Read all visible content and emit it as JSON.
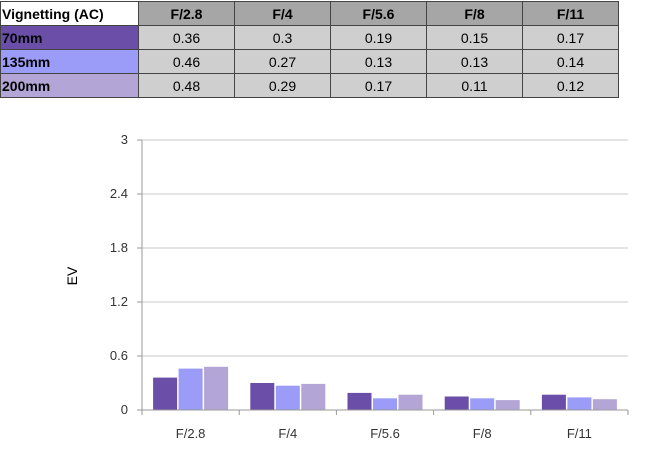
{
  "table": {
    "corner_label": "Vignetting (AC)",
    "columns": [
      "F/2.8",
      "F/4",
      "F/5.6",
      "F/8",
      "F/11"
    ],
    "rows": [
      {
        "label": "70mm",
        "color": "#6a4ea8",
        "values": [
          "0.36",
          "0.3",
          "0.19",
          "0.15",
          "0.17"
        ]
      },
      {
        "label": "135mm",
        "color": "#9b9cf7",
        "values": [
          "0.46",
          "0.27",
          "0.13",
          "0.13",
          "0.14"
        ]
      },
      {
        "label": "200mm",
        "color": "#b3a5d5",
        "values": [
          "0.48",
          "0.29",
          "0.17",
          "0.11",
          "0.12"
        ]
      }
    ]
  },
  "chart_data": {
    "type": "bar",
    "categories": [
      "F/2.8",
      "F/4",
      "F/5.6",
      "F/8",
      "F/11"
    ],
    "series": [
      {
        "name": "70mm",
        "color": "#6a4ea8",
        "values": [
          0.36,
          0.3,
          0.19,
          0.15,
          0.17
        ]
      },
      {
        "name": "135mm",
        "color": "#9b9cf7",
        "values": [
          0.46,
          0.27,
          0.13,
          0.13,
          0.14
        ]
      },
      {
        "name": "200mm",
        "color": "#b3a5d5",
        "values": [
          0.48,
          0.29,
          0.17,
          0.11,
          0.12
        ]
      }
    ],
    "title": "",
    "xlabel": "",
    "ylabel": "EV",
    "ylim": [
      0,
      3
    ],
    "yticks": [
      "0",
      "0.6",
      "1.2",
      "1.8",
      "2.4",
      "3"
    ],
    "ytick_values": [
      0,
      0.6,
      1.2,
      1.8,
      2.4,
      3
    ],
    "grid": true,
    "legend": "none"
  }
}
